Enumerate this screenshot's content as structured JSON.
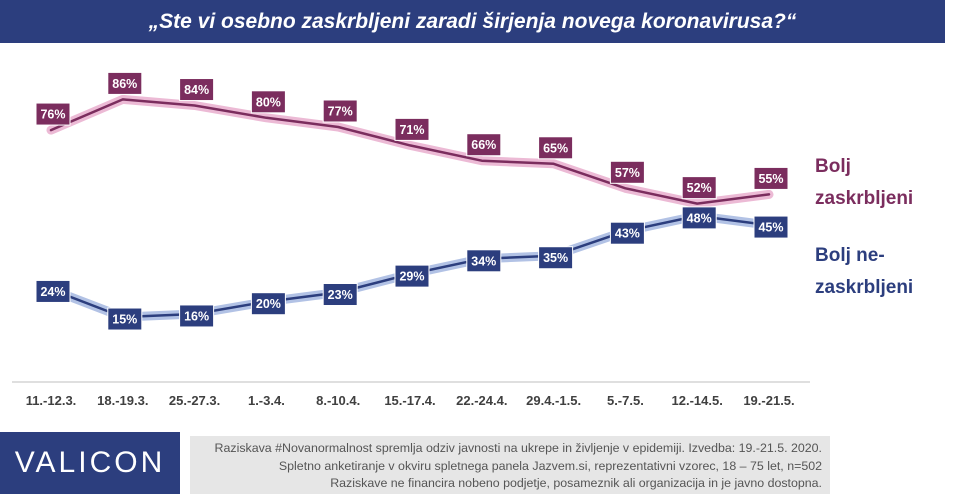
{
  "title": "„Ste vi osebno zaskrbljeni zaradi širjenja novega koronavirusa?“",
  "logo": "VALICON",
  "footnote": {
    "line1": "Raziskava #Novanormalnost spremlja odziv javnosti na ukrepe in življenje v epidemiji. Izvedba: 19.-21.5. 2020.",
    "line2": "Spletno anketiranje v okviru spletnega panela Jazvem.si, reprezentativni vzorec, 18 – 75 let, n=502",
    "line3": "Raziskave ne financira nobeno podjetje, posameznik ali organizacija in je javno dostopna."
  },
  "chart_data": {
    "type": "line",
    "title": "„Ste vi osebno zaskrbljeni zaradi širjenja novega koronavirusa?“",
    "x_labels": [
      "11.-12.3.",
      "18.-19.3.",
      "25.-27.3.",
      "1.-3.4.",
      "8.-10.4.",
      "15.-17.4.",
      "22.-24.4.",
      "29.4.-1.5.",
      "5.-7.5.",
      "12.-14.5.",
      "19.-21.5."
    ],
    "x_unit": "%",
    "series": [
      {
        "name": "Bolj zaskrbljeni",
        "legend_lines": [
          "Bolj",
          "zaskrbljeni"
        ],
        "color": "#7b2d5e",
        "glow": "#e7a9cb",
        "values": [
          76,
          86,
          84,
          80,
          77,
          71,
          66,
          65,
          57,
          52,
          55
        ],
        "labels": [
          "76%",
          "86%",
          "84%",
          "80%",
          "77%",
          "71%",
          "66%",
          "65%",
          "57%",
          "52%",
          "55%"
        ]
      },
      {
        "name": "Bolj ne-zaskrbljeni",
        "legend_lines": [
          "Bolj ne-",
          "zaskrbljeni"
        ],
        "color": "#2c3e7e",
        "glow": "#9fb3de",
        "values": [
          24,
          15,
          16,
          20,
          23,
          29,
          34,
          35,
          43,
          48,
          45
        ],
        "labels": [
          "24%",
          "15%",
          "16%",
          "20%",
          "23%",
          "29%",
          "34%",
          "35%",
          "43%",
          "48%",
          "45%"
        ]
      }
    ],
    "grid": false,
    "legend_position": "right"
  }
}
